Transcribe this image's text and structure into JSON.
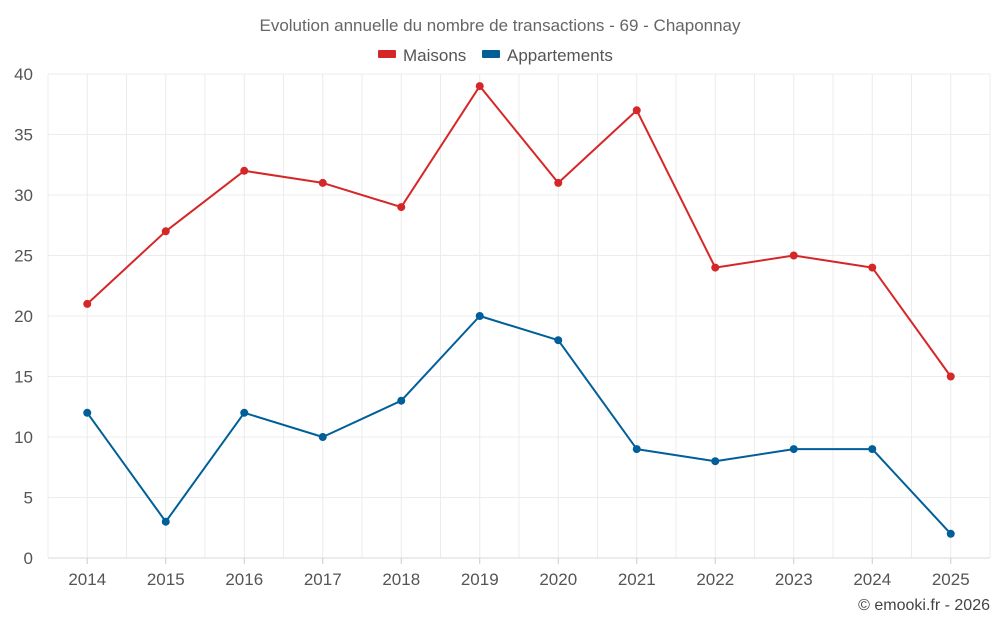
{
  "chart_data": {
    "type": "line",
    "title": "Evolution annuelle du nombre de transactions - 69 - Chaponnay",
    "categories": [
      "2014",
      "2015",
      "2016",
      "2017",
      "2018",
      "2019",
      "2020",
      "2021",
      "2022",
      "2023",
      "2024",
      "2025"
    ],
    "series": [
      {
        "name": "Maisons",
        "color": "#d62728",
        "values": [
          21,
          27,
          32,
          31,
          29,
          39,
          31,
          37,
          24,
          25,
          24,
          15
        ]
      },
      {
        "name": "Appartements",
        "color": "#005f99",
        "values": [
          12,
          3,
          12,
          10,
          13,
          20,
          18,
          9,
          8,
          9,
          9,
          2
        ]
      }
    ],
    "ylim": [
      0,
      40
    ],
    "yticks": [
      "0",
      "5",
      "10",
      "15",
      "20",
      "25",
      "30",
      "35",
      "40"
    ],
    "legend_position": "top-center",
    "grid": true,
    "xlabel": "",
    "ylabel": ""
  },
  "credit": "© emooki.fr - 2026"
}
